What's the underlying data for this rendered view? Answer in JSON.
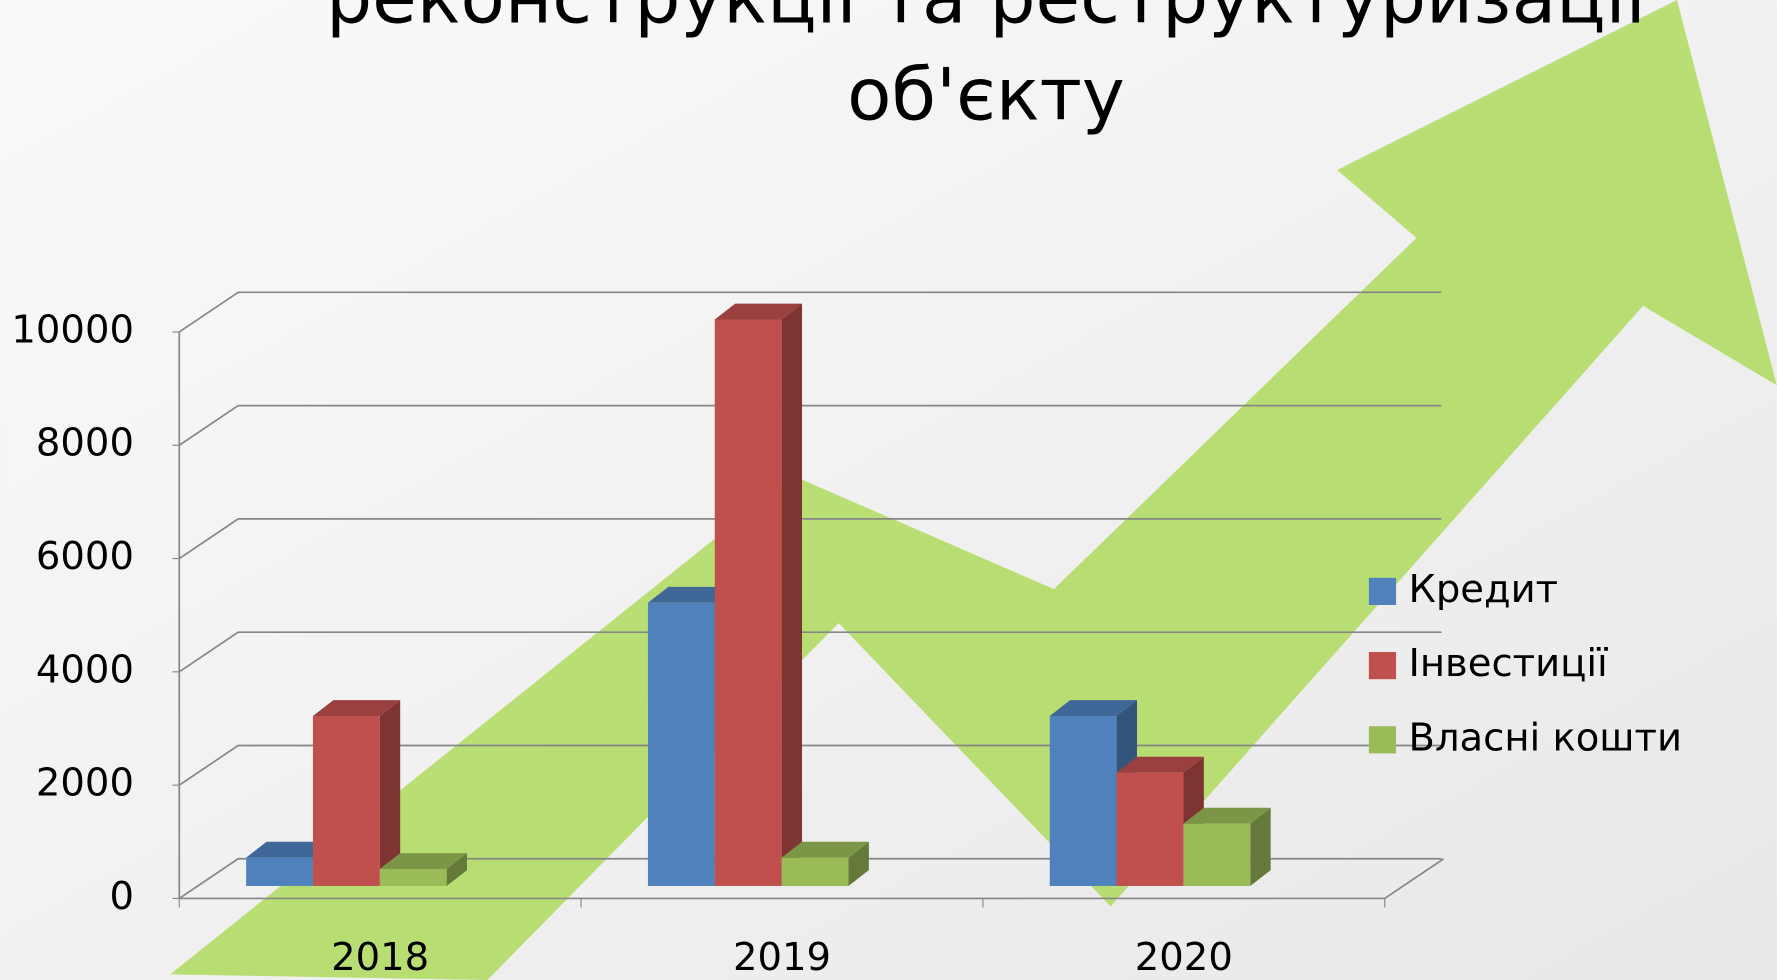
{
  "chart_data": {
    "type": "bar3d",
    "title_lines": [
      "реконструкції та реструктуризації",
      "об'єкту"
    ],
    "categories": [
      "2018",
      "2019",
      "2020"
    ],
    "series": [
      {
        "name": "Кредит",
        "color": "#4f81bd",
        "values": [
          500,
          5000,
          3000
        ]
      },
      {
        "name": "Інвестиції",
        "color": "#c0504d",
        "values": [
          3000,
          10000,
          2000
        ]
      },
      {
        "name": "Власні кошти",
        "color": "#9bbb59",
        "values": [
          300,
          500,
          1100
        ]
      }
    ],
    "ylim": [
      0,
      10000
    ],
    "yticks": [
      0,
      2000,
      4000,
      6000,
      8000,
      10000
    ],
    "grid": true,
    "legend": "right"
  }
}
